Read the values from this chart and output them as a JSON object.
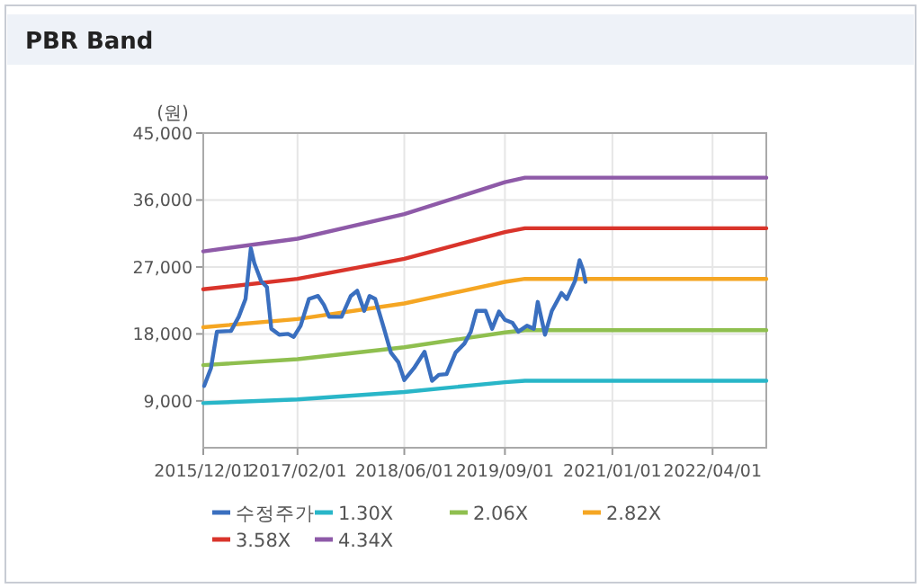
{
  "chart_data": {
    "type": "line",
    "title": "PBR Band",
    "ylabel": "(원)",
    "xlim": [
      "2015-12-01",
      "2022-12-01"
    ],
    "xticks": [
      {
        "value": "2015-12-01",
        "label": "2015/12/01"
      },
      {
        "value": "2017-02-01",
        "label": "2017/02/01"
      },
      {
        "value": "2018-06-01",
        "label": "2018/06/01"
      },
      {
        "value": "2019-09-01",
        "label": "2019/09/01"
      },
      {
        "value": "2021-01-01",
        "label": "2021/01/01"
      },
      {
        "value": "2022-04-01",
        "label": "2022/04/01"
      }
    ],
    "ylim": [
      2700,
      45000
    ],
    "yticks": [
      {
        "value": 9000,
        "label": "9,000"
      },
      {
        "value": 18000,
        "label": "18,000"
      },
      {
        "value": 27000,
        "label": "27,000"
      },
      {
        "value": 36000,
        "label": "36,000"
      },
      {
        "value": 45000,
        "label": "45,000"
      }
    ],
    "grid": true,
    "legend": "bottom",
    "series": [
      {
        "name": "수정주가",
        "color": "#3a6fbf",
        "x": [
          "2015-12-05",
          "2016-01-05",
          "2016-02-01",
          "2016-04-05",
          "2016-05-10",
          "2016-06-10",
          "2016-07-04",
          "2016-07-20",
          "2016-08-20",
          "2016-09-15",
          "2016-10-05",
          "2016-11-10",
          "2016-12-20",
          "2017-01-15",
          "2017-02-15",
          "2017-03-25",
          "2017-05-05",
          "2017-06-01",
          "2017-06-25",
          "2017-08-20",
          "2017-10-01",
          "2017-10-30",
          "2017-12-01",
          "2017-12-25",
          "2018-01-20",
          "2018-03-01",
          "2018-04-01",
          "2018-05-05",
          "2018-06-01",
          "2018-07-15",
          "2018-09-01",
          "2018-10-05",
          "2018-11-05",
          "2018-12-10",
          "2019-01-20",
          "2019-03-01",
          "2019-03-30",
          "2019-04-25",
          "2019-06-05",
          "2019-07-05",
          "2019-08-05",
          "2019-09-01",
          "2019-10-05",
          "2019-11-01",
          "2019-12-10",
          "2020-01-10",
          "2020-01-28",
          "2020-03-01",
          "2020-04-01",
          "2020-05-15",
          "2020-06-08",
          "2020-07-15",
          "2020-08-05",
          "2020-08-20",
          "2020-09-01"
        ],
        "values": [
          11000,
          13400,
          18300,
          18400,
          20300,
          22700,
          29500,
          27500,
          25100,
          24300,
          18700,
          17900,
          18000,
          17600,
          19100,
          22700,
          23100,
          21900,
          20300,
          20300,
          23100,
          23800,
          21100,
          23100,
          22700,
          18700,
          15500,
          14200,
          11800,
          13400,
          15600,
          11700,
          12500,
          12600,
          15500,
          16700,
          18300,
          21100,
          21100,
          18700,
          21000,
          19900,
          19500,
          18300,
          19100,
          18700,
          22300,
          17900,
          21100,
          23500,
          22700,
          25100,
          27900,
          26700,
          25000
        ]
      },
      {
        "name": "1.30X",
        "color": "#29b6c8",
        "x": [
          "2015-12-01",
          "2017-02-01",
          "2018-06-01",
          "2019-09-01",
          "2019-12-01",
          "2022-12-01"
        ],
        "values": [
          8700,
          9200,
          10200,
          11500,
          11700,
          11700
        ]
      },
      {
        "name": "2.06X",
        "color": "#8fbf4f",
        "x": [
          "2015-12-01",
          "2017-02-01",
          "2018-06-01",
          "2019-09-01",
          "2019-12-01",
          "2022-12-01"
        ],
        "values": [
          13800,
          14600,
          16200,
          18200,
          18500,
          18500
        ]
      },
      {
        "name": "2.82X",
        "color": "#f5a623",
        "x": [
          "2015-12-01",
          "2017-02-01",
          "2018-06-01",
          "2019-09-01",
          "2019-12-01",
          "2022-12-01"
        ],
        "values": [
          18900,
          20000,
          22100,
          25000,
          25400,
          25400
        ]
      },
      {
        "name": "3.58X",
        "color": "#d9342b",
        "x": [
          "2015-12-01",
          "2017-02-01",
          "2018-06-01",
          "2019-09-01",
          "2019-12-01",
          "2022-12-01"
        ],
        "values": [
          24000,
          25400,
          28100,
          31700,
          32200,
          32200
        ]
      },
      {
        "name": "4.34X",
        "color": "#8e5aa8",
        "x": [
          "2015-12-01",
          "2017-02-01",
          "2018-06-01",
          "2019-09-01",
          "2019-12-01",
          "2022-12-01"
        ],
        "values": [
          29100,
          30800,
          34100,
          38400,
          39000,
          39000
        ]
      }
    ]
  }
}
